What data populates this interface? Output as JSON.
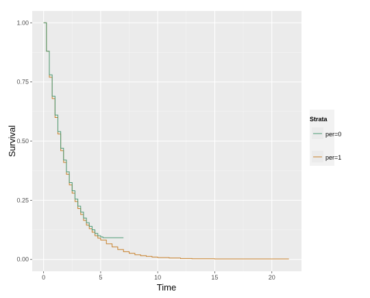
{
  "chart_data": {
    "type": "line",
    "title": "",
    "xlabel": "Time",
    "ylabel": "Survival",
    "xlim": [
      -1.0,
      22.6
    ],
    "ylim": [
      -0.05,
      1.05
    ],
    "x_ticks": [
      0,
      5,
      10,
      15,
      20
    ],
    "x_tick_labels": [
      "0",
      "5",
      "10",
      "15",
      "20"
    ],
    "y_ticks": [
      0.0,
      0.25,
      0.5,
      0.75,
      1.0
    ],
    "y_tick_labels": [
      "0.00",
      "0.25",
      "0.50",
      "0.75",
      "1.00"
    ],
    "grid": true,
    "background": "#ebebeb",
    "legend": {
      "title": "Strata",
      "placement": "right",
      "entries": [
        {
          "label": "per=0",
          "color": "#4a9872"
        },
        {
          "label": "per=1",
          "color": "#c77f28"
        }
      ]
    },
    "series": [
      {
        "legend_label": "per=0",
        "color": "#4a9872",
        "x": [
          0,
          0.25,
          0.5,
          0.75,
          1.0,
          1.25,
          1.5,
          1.75,
          2.0,
          2.25,
          2.5,
          2.75,
          3.0,
          3.25,
          3.5,
          3.75,
          4.0,
          4.25,
          4.5,
          4.75,
          5.0,
          5.2,
          5.5,
          6.0,
          6.5,
          7.0
        ],
        "y": [
          1.0,
          0.88,
          0.78,
          0.69,
          0.61,
          0.54,
          0.47,
          0.42,
          0.37,
          0.325,
          0.29,
          0.255,
          0.225,
          0.2,
          0.175,
          0.155,
          0.14,
          0.125,
          0.11,
          0.1,
          0.095,
          0.092,
          0.092,
          0.092,
          0.092,
          0.092
        ]
      },
      {
        "legend_label": "per=1",
        "color": "#c77f28",
        "x": [
          0,
          0.25,
          0.5,
          0.75,
          1.0,
          1.25,
          1.5,
          1.75,
          2.0,
          2.25,
          2.5,
          2.75,
          3.0,
          3.25,
          3.5,
          3.75,
          4.0,
          4.25,
          4.5,
          4.75,
          5.0,
          5.5,
          6.0,
          6.5,
          7.0,
          7.5,
          8.0,
          8.5,
          9.0,
          9.5,
          10.0,
          11.0,
          12.0,
          13.0,
          14.0,
          15.0,
          16.0,
          18.0,
          20.0,
          21.5
        ],
        "y": [
          1.0,
          0.88,
          0.77,
          0.68,
          0.6,
          0.53,
          0.46,
          0.41,
          0.36,
          0.315,
          0.28,
          0.245,
          0.215,
          0.19,
          0.165,
          0.145,
          0.13,
          0.115,
          0.1,
          0.09,
          0.082,
          0.066,
          0.053,
          0.042,
          0.033,
          0.026,
          0.02,
          0.016,
          0.013,
          0.01,
          0.008,
          0.006,
          0.004,
          0.003,
          0.003,
          0.002,
          0.002,
          0.002,
          0.002,
          0.002
        ]
      }
    ]
  }
}
